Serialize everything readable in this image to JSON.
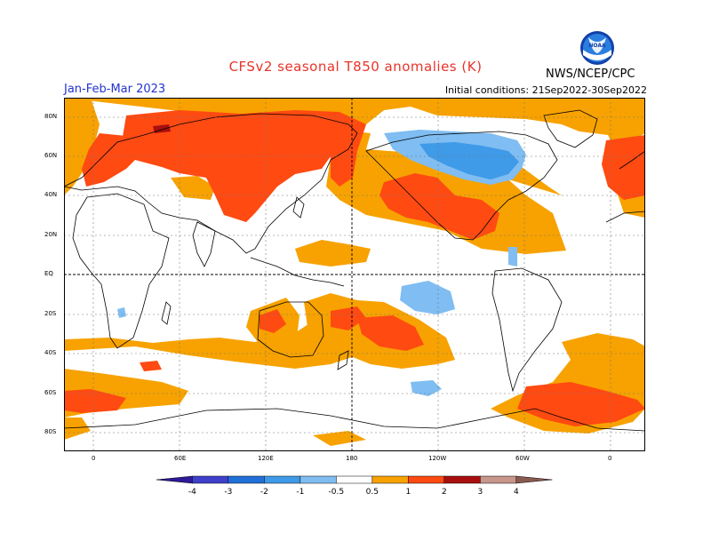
{
  "header": {
    "title": "CFSv2 seasonal T850 anomalies (K)",
    "season": "Jan-Feb-Mar 2023",
    "initial_conditions": "Initial conditions: 21Sep2022-30Sep2022",
    "agency": "NWS/NCEP/CPC",
    "logo_text": "NOAA"
  },
  "map": {
    "lat_labels": [
      "80N",
      "60N",
      "40N",
      "20N",
      "EQ",
      "20S",
      "40S",
      "60S",
      "80S"
    ],
    "lon_labels": [
      "0",
      "60E",
      "120E",
      "180",
      "120W",
      "60W",
      "0"
    ]
  },
  "colorbar": {
    "labels": [
      "-4",
      "-3",
      "-2",
      "-1",
      "-0.5",
      "0.5",
      "1",
      "2",
      "3",
      "4"
    ],
    "colors": [
      "#2e1a99",
      "#3f3fcc",
      "#2070d8",
      "#3f9ae8",
      "#7fbdf2",
      "#ffffff",
      "#f7a200",
      "#ff4a12",
      "#a80f0f",
      "#c8968c",
      "#8a5a50"
    ]
  },
  "palette": {
    "title": "#e8332a",
    "season": "#2233cc",
    "warm_1": "#f7a200",
    "warm_2": "#ff4a12",
    "warm_3": "#a80f0f",
    "cool_1": "#7fbdf2",
    "cool_2": "#3f9ae8"
  }
}
